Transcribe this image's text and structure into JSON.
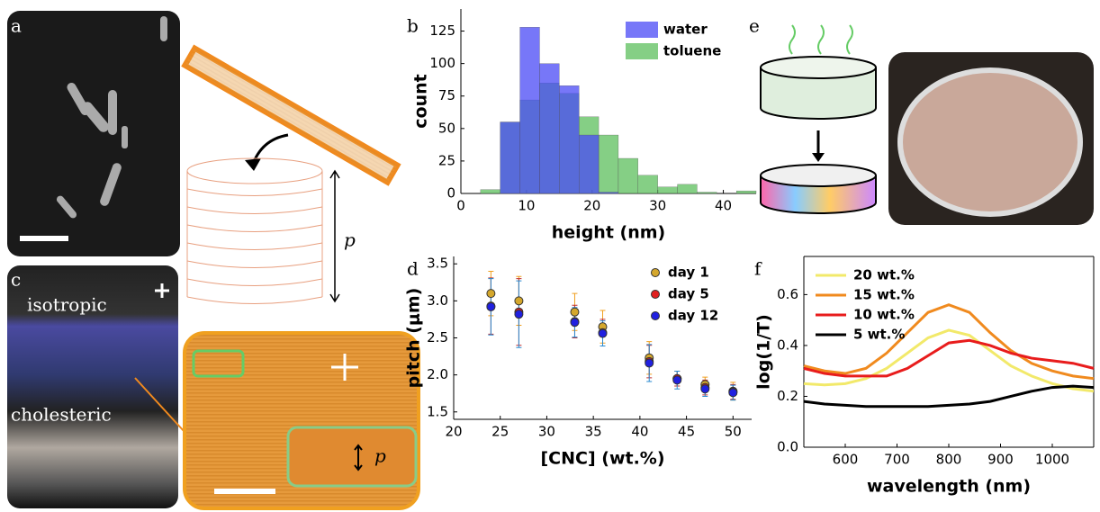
{
  "figure": {
    "panel_labels": [
      "a",
      "b",
      "c",
      "d",
      "e",
      "f"
    ],
    "annotations": {
      "isotropic": "isotropic",
      "cholesteric": "cholesteric",
      "pitch_symbol": "p"
    }
  },
  "chart_data": [
    {
      "type": "histogram",
      "xlabel": "height (nm)",
      "ylabel": "count",
      "bins": [
        3,
        6,
        9,
        12,
        15,
        18,
        21,
        24,
        27,
        30,
        33,
        36,
        39,
        42,
        45
      ],
      "series": [
        {
          "name": "toluene",
          "color": "#5cbf5c",
          "values": [
            3,
            55,
            72,
            85,
            77,
            59,
            45,
            27,
            14,
            5,
            7,
            1,
            0,
            2
          ]
        },
        {
          "name": "water",
          "color": "#4a4af5",
          "values": [
            0,
            55,
            128,
            100,
            83,
            45,
            1,
            0,
            0,
            0,
            0,
            0,
            0,
            0
          ]
        }
      ],
      "legend_order": [
        "water",
        "toluene"
      ],
      "xlim": [
        0,
        45
      ],
      "ylim": [
        0,
        142
      ],
      "xticks": [
        0,
        10,
        20,
        30,
        40
      ],
      "yticks": [
        0,
        25,
        50,
        75,
        100,
        125
      ]
    },
    {
      "type": "scatter",
      "xlabel": "[CNC] (wt.%)",
      "ylabel": "pitch (μm)",
      "x": [
        24,
        27,
        33,
        36,
        41,
        44,
        47,
        50
      ],
      "series": [
        {
          "name": "day 1",
          "color": "#d4a72c",
          "error_color": "#f0a020",
          "values": [
            3.1,
            3.0,
            2.85,
            2.65,
            2.23,
            1.95,
            1.87,
            1.78
          ],
          "errors": [
            0.3,
            0.33,
            0.25,
            0.22,
            0.22,
            0.1,
            0.1,
            0.12
          ]
        },
        {
          "name": "day 5",
          "color": "#e02020",
          "error_color": "#c03030",
          "values": [
            2.93,
            2.85,
            2.72,
            2.57,
            2.18,
            1.95,
            1.83,
            1.77
          ],
          "errors": [
            0.38,
            0.45,
            0.22,
            0.18,
            0.22,
            0.1,
            0.1,
            0.1
          ]
        },
        {
          "name": "day 12",
          "color": "#2020e0",
          "error_color": "#2a8ad0",
          "values": [
            2.92,
            2.82,
            2.71,
            2.56,
            2.16,
            1.93,
            1.81,
            1.76
          ],
          "errors": [
            0.38,
            0.45,
            0.2,
            0.17,
            0.25,
            0.12,
            0.1,
            0.1
          ]
        }
      ],
      "xlim": [
        20,
        52
      ],
      "ylim": [
        1.4,
        3.6
      ],
      "xticks": [
        20,
        25,
        30,
        35,
        40,
        45,
        50
      ],
      "yticks": [
        1.5,
        {
          "value": 2,
          "label": "2.0"
        },
        2.5,
        {
          "value": 3,
          "label": "3.0"
        },
        3.5
      ]
    },
    {
      "type": "line",
      "xlabel": "wavelength (nm)",
      "ylabel": "log(1/T)",
      "x": [
        520,
        560,
        600,
        640,
        680,
        720,
        760,
        800,
        840,
        880,
        920,
        960,
        1000,
        1040,
        1080
      ],
      "series": [
        {
          "name": "20 wt.%",
          "color": "#f2e96a",
          "values": [
            0.25,
            0.245,
            0.25,
            0.27,
            0.31,
            0.37,
            0.43,
            0.46,
            0.44,
            0.38,
            0.32,
            0.28,
            0.25,
            0.23,
            0.22
          ]
        },
        {
          "name": "15 wt.%",
          "color": "#f08a1e",
          "values": [
            0.32,
            0.3,
            0.29,
            0.31,
            0.37,
            0.45,
            0.53,
            0.56,
            0.53,
            0.45,
            0.38,
            0.33,
            0.3,
            0.28,
            0.27
          ]
        },
        {
          "name": "10 wt.%",
          "color": "#e81c1c",
          "values": [
            0.31,
            0.29,
            0.28,
            0.28,
            0.28,
            0.31,
            0.36,
            0.41,
            0.42,
            0.4,
            0.37,
            0.35,
            0.34,
            0.33,
            0.31
          ]
        },
        {
          "name": "5 wt.%",
          "color": "#000000",
          "values": [
            0.18,
            0.17,
            0.165,
            0.16,
            0.16,
            0.16,
            0.16,
            0.165,
            0.17,
            0.18,
            0.2,
            0.22,
            0.235,
            0.24,
            0.235
          ]
        }
      ],
      "xlim": [
        520,
        1080
      ],
      "ylim": [
        0,
        0.75
      ],
      "xticks": [
        600,
        700,
        800,
        900,
        1000
      ],
      "yticks": [
        {
          "value": 0,
          "label": "0.0"
        },
        0.2,
        0.4,
        0.6
      ]
    }
  ]
}
